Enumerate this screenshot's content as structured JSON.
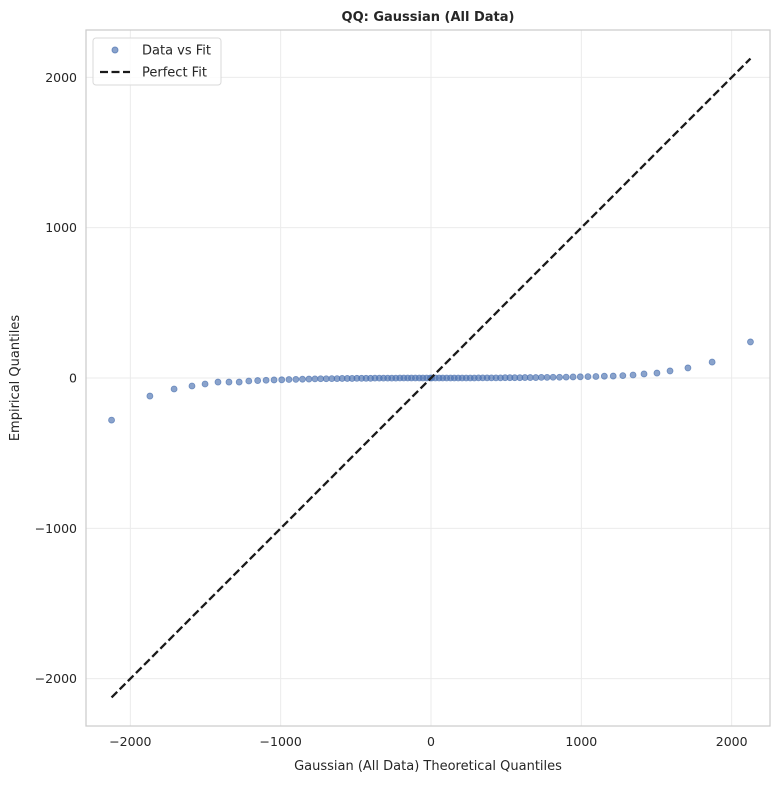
{
  "chart_data": {
    "type": "scatter",
    "title": "QQ: Gaussian (All Data)",
    "xlabel": "Gaussian (All Data) Theoretical Quantiles",
    "ylabel": "Empirical Quantiles",
    "xlim": [
      -2295,
      2255
    ],
    "ylim": [
      -2315,
      2315
    ],
    "xticks": [
      -2000,
      -1000,
      0,
      1000,
      2000
    ],
    "yticks": [
      -2000,
      -1000,
      0,
      1000,
      2000
    ],
    "xtick_labels": [
      "−2000",
      "−1000",
      "0",
      "1000",
      "2000"
    ],
    "ytick_labels": [
      "−2000",
      "−1000",
      "0",
      "1000",
      "2000"
    ],
    "grid": true,
    "legend_placement": "top-left",
    "series": [
      {
        "name": "Data vs Fit",
        "kind": "scatter",
        "color": "#4c72b0",
        "x": [
          -2125,
          -1870,
          -1709,
          -1590,
          -1503,
          -1417,
          -1344,
          -1276,
          -1212,
          -1153,
          -1097,
          -1044,
          -993,
          -945,
          -899,
          -855,
          -812,
          -772,
          -734,
          -697,
          -660,
          -625,
          -591,
          -557,
          -525,
          -493,
          -462,
          -432,
          -402,
          -373,
          -344,
          -316,
          -288,
          -261,
          -234,
          -207,
          -181,
          -155,
          -130,
          -104,
          -78,
          -54,
          -29,
          -5,
          5,
          29,
          54,
          78,
          104,
          130,
          155,
          181,
          207,
          234,
          261,
          288,
          316,
          344,
          373,
          402,
          432,
          462,
          493,
          525,
          557,
          591,
          625,
          660,
          697,
          734,
          772,
          812,
          855,
          899,
          945,
          993,
          1044,
          1097,
          1153,
          1212,
          1276,
          1344,
          1417,
          1503,
          1590,
          1709,
          1870,
          2125
        ],
        "y": [
          -280,
          -120,
          -73,
          -53,
          -40,
          -27,
          -27,
          -27,
          -20,
          -17,
          -15,
          -13,
          -12,
          -10,
          -9,
          -8,
          -7,
          -6,
          -5,
          -5,
          -4,
          -4,
          -3,
          -3,
          -3,
          -2,
          -2,
          -2,
          -2,
          -1,
          -1,
          -1,
          -1,
          -1,
          -1,
          0,
          0,
          0,
          0,
          0,
          0,
          0,
          0,
          0,
          0,
          0,
          0,
          0,
          0,
          0,
          0,
          0,
          0,
          0,
          0,
          0,
          1,
          1,
          1,
          1,
          1,
          1,
          2,
          2,
          2,
          2,
          3,
          3,
          3,
          4,
          4,
          5,
          5,
          6,
          7,
          8,
          9,
          10,
          12,
          13,
          16,
          20,
          27,
          33,
          47,
          67,
          106,
          240
        ]
      },
      {
        "name": "Perfect Fit",
        "kind": "line",
        "style": "dashed",
        "color": "#1a1a1a",
        "x": [
          -2125,
          2125
        ],
        "y": [
          -2125,
          2125
        ]
      }
    ]
  }
}
